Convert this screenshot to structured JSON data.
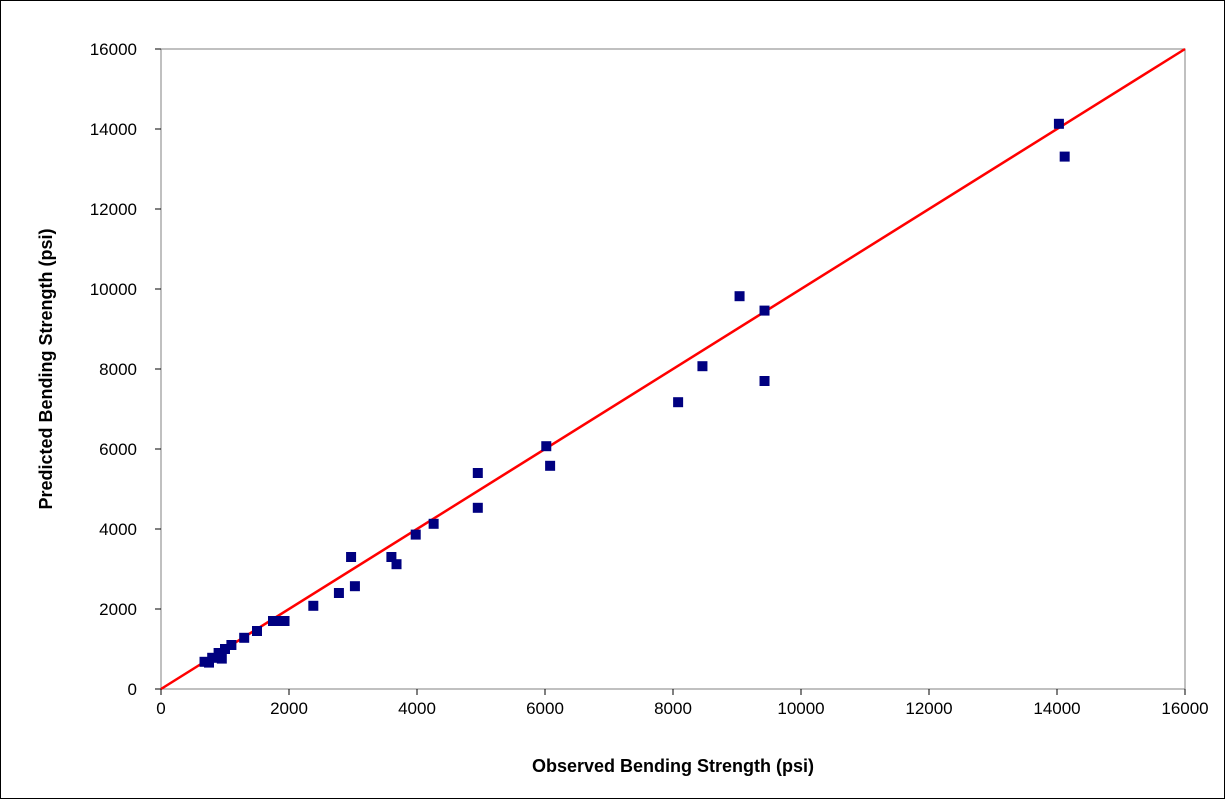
{
  "chart_data": {
    "type": "scatter",
    "title": "",
    "xlabel": "Observed Bending Strength (psi)",
    "ylabel": "Predicted Bending Strength (psi)",
    "xlim": [
      0,
      16000
    ],
    "ylim": [
      0,
      16000
    ],
    "x_ticks": [
      "0",
      "2000",
      "4000",
      "6000",
      "8000",
      "10000",
      "12000",
      "14000",
      "16000"
    ],
    "y_ticks": [
      "0",
      "2000",
      "4000",
      "6000",
      "8000",
      "10000",
      "12000",
      "14000",
      "16000"
    ],
    "grid": false,
    "legend": "none",
    "colors": {
      "points": "#000080",
      "reference_line": "#ff0000"
    },
    "reference_line": {
      "from": [
        0,
        0
      ],
      "to": [
        16000,
        16000
      ]
    },
    "points": [
      {
        "x": 680,
        "y": 680
      },
      {
        "x": 750,
        "y": 660
      },
      {
        "x": 800,
        "y": 780
      },
      {
        "x": 900,
        "y": 900
      },
      {
        "x": 950,
        "y": 760
      },
      {
        "x": 1000,
        "y": 1000
      },
      {
        "x": 1100,
        "y": 1100
      },
      {
        "x": 1300,
        "y": 1280
      },
      {
        "x": 1500,
        "y": 1450
      },
      {
        "x": 1750,
        "y": 1700
      },
      {
        "x": 1850,
        "y": 1700
      },
      {
        "x": 1930,
        "y": 1700
      },
      {
        "x": 2380,
        "y": 2080
      },
      {
        "x": 2780,
        "y": 2400
      },
      {
        "x": 2970,
        "y": 3300
      },
      {
        "x": 3030,
        "y": 2570
      },
      {
        "x": 3600,
        "y": 3300
      },
      {
        "x": 3680,
        "y": 3120
      },
      {
        "x": 3980,
        "y": 3860
      },
      {
        "x": 4260,
        "y": 4130
      },
      {
        "x": 4950,
        "y": 5400
      },
      {
        "x": 4950,
        "y": 4530
      },
      {
        "x": 6020,
        "y": 6070
      },
      {
        "x": 6080,
        "y": 5580
      },
      {
        "x": 8080,
        "y": 7170
      },
      {
        "x": 8460,
        "y": 8070
      },
      {
        "x": 9040,
        "y": 9820
      },
      {
        "x": 9430,
        "y": 9460
      },
      {
        "x": 9430,
        "y": 7700
      },
      {
        "x": 14030,
        "y": 14130
      },
      {
        "x": 14120,
        "y": 13310
      }
    ]
  }
}
